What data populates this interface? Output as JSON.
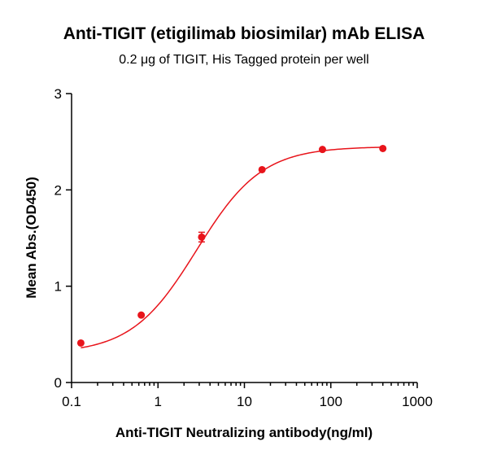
{
  "chart_data": {
    "type": "scatter",
    "title": "Anti-TIGIT (etigilimab biosimilar) mAb ELISA",
    "subtitle": "0.2 μg of TIGIT, His Tagged protein per well",
    "xlabel": "Anti-TIGIT Neutralizing antibody(ng/ml)",
    "ylabel": "Mean Abs.(OD450)",
    "x_scale": "log",
    "xlim": [
      0.1,
      1000
    ],
    "ylim": [
      0,
      3
    ],
    "x_ticks": [
      0.1,
      1,
      10,
      100,
      1000
    ],
    "x_tick_labels": [
      "0.1",
      "1",
      "10",
      "100",
      "1000"
    ],
    "y_ticks": [
      0,
      1,
      2,
      3
    ],
    "y_tick_labels": [
      "0",
      "1",
      "2",
      "3"
    ],
    "grid": false,
    "color": "#e8141b",
    "series": [
      {
        "x": [
          0.128,
          0.64,
          3.2,
          16,
          80,
          400
        ],
        "y": [
          0.41,
          0.7,
          1.51,
          2.21,
          2.42,
          2.43
        ],
        "error": [
          0.0,
          0.0,
          0.05,
          0.0,
          0.0,
          0.0
        ],
        "fit": {
          "model": "4PL",
          "bottom": 0.3,
          "top": 2.45,
          "ec50": 2.8,
          "hill": 1.15
        }
      }
    ]
  }
}
